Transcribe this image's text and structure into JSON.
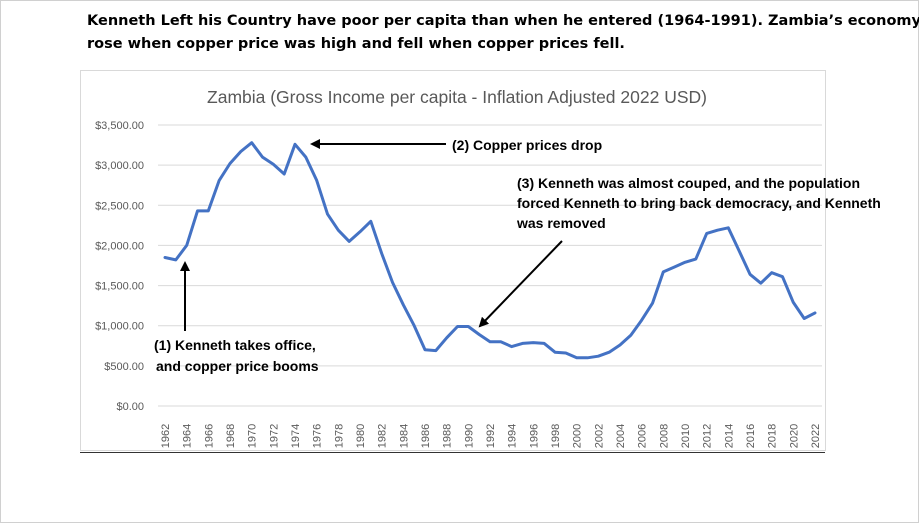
{
  "caption": {
    "line1": "Kenneth Left his Country have poor per capita than when he entered (1964-1991). Zambia’s economy",
    "line2": "rose when copper price was high and fell when copper prices fell."
  },
  "chart_data": {
    "type": "line",
    "title": "Zambia (Gross Income per capita - Inflation Adjusted 2022 USD)",
    "xlabel": "",
    "ylabel": "",
    "ylim": [
      0,
      3500
    ],
    "yticks": [
      "$0.00",
      "$500.00",
      "$1,000.00",
      "$1,500.00",
      "$2,000.00",
      "$2,500.00",
      "$3,000.00",
      "$3,500.00"
    ],
    "ytick_values": [
      0,
      500,
      1000,
      1500,
      2000,
      2500,
      3000,
      3500
    ],
    "xtick_labels": [
      "1962",
      "1964",
      "1966",
      "1968",
      "1970",
      "1972",
      "1974",
      "1976",
      "1978",
      "1980",
      "1982",
      "1984",
      "1986",
      "1988",
      "1990",
      "1992",
      "1994",
      "1996",
      "1998",
      "2000",
      "2002",
      "2004",
      "2006",
      "2008",
      "2010",
      "2012",
      "2014",
      "2016",
      "2018",
      "2020",
      "2022"
    ],
    "grid": true,
    "line_color": "#4472C4",
    "series": [
      {
        "x": [
          1962,
          1963,
          1964,
          1965,
          1966,
          1967,
          1968,
          1969,
          1970,
          1971,
          1972,
          1973,
          1974,
          1975,
          1976,
          1977,
          1978,
          1979,
          1980,
          1981,
          1982,
          1983,
          1984,
          1985,
          1986,
          1987,
          1988,
          1989,
          1990,
          1991,
          1992,
          1993,
          1994,
          1995,
          1996,
          1997,
          1998,
          1999,
          2000,
          2001,
          2002,
          2003,
          2004,
          2005,
          2006,
          2007,
          2008,
          2009,
          2010,
          2011,
          2012,
          2013,
          2014,
          2015,
          2016,
          2017,
          2018,
          2019,
          2020,
          2021,
          2022
        ],
        "values": [
          1850,
          1820,
          2000,
          2430,
          2430,
          2810,
          3020,
          3170,
          3280,
          3100,
          3010,
          2890,
          3260,
          3100,
          2810,
          2390,
          2190,
          2050,
          2170,
          2300,
          1900,
          1540,
          1260,
          1000,
          700,
          690,
          850,
          990,
          990,
          890,
          800,
          800,
          740,
          780,
          790,
          780,
          670,
          660,
          600,
          600,
          620,
          670,
          760,
          880,
          1070,
          1280,
          1670,
          1730,
          1790,
          1830,
          2150,
          2190,
          2220,
          1930,
          1640,
          1530,
          1660,
          1610,
          1290,
          1090,
          1160
        ]
      }
    ],
    "annotations": [
      {
        "id": "a1",
        "line1": "(1) Kenneth takes office,",
        "line2": "and copper price  booms"
      },
      {
        "id": "a2",
        "line1": "(2) Copper prices drop"
      },
      {
        "id": "a3",
        "line1": "(3) Kenneth was almost couped, and the population",
        "line2": "forced Kenneth to bring back democracy, and Kenneth",
        "line3": "was removed"
      }
    ]
  }
}
